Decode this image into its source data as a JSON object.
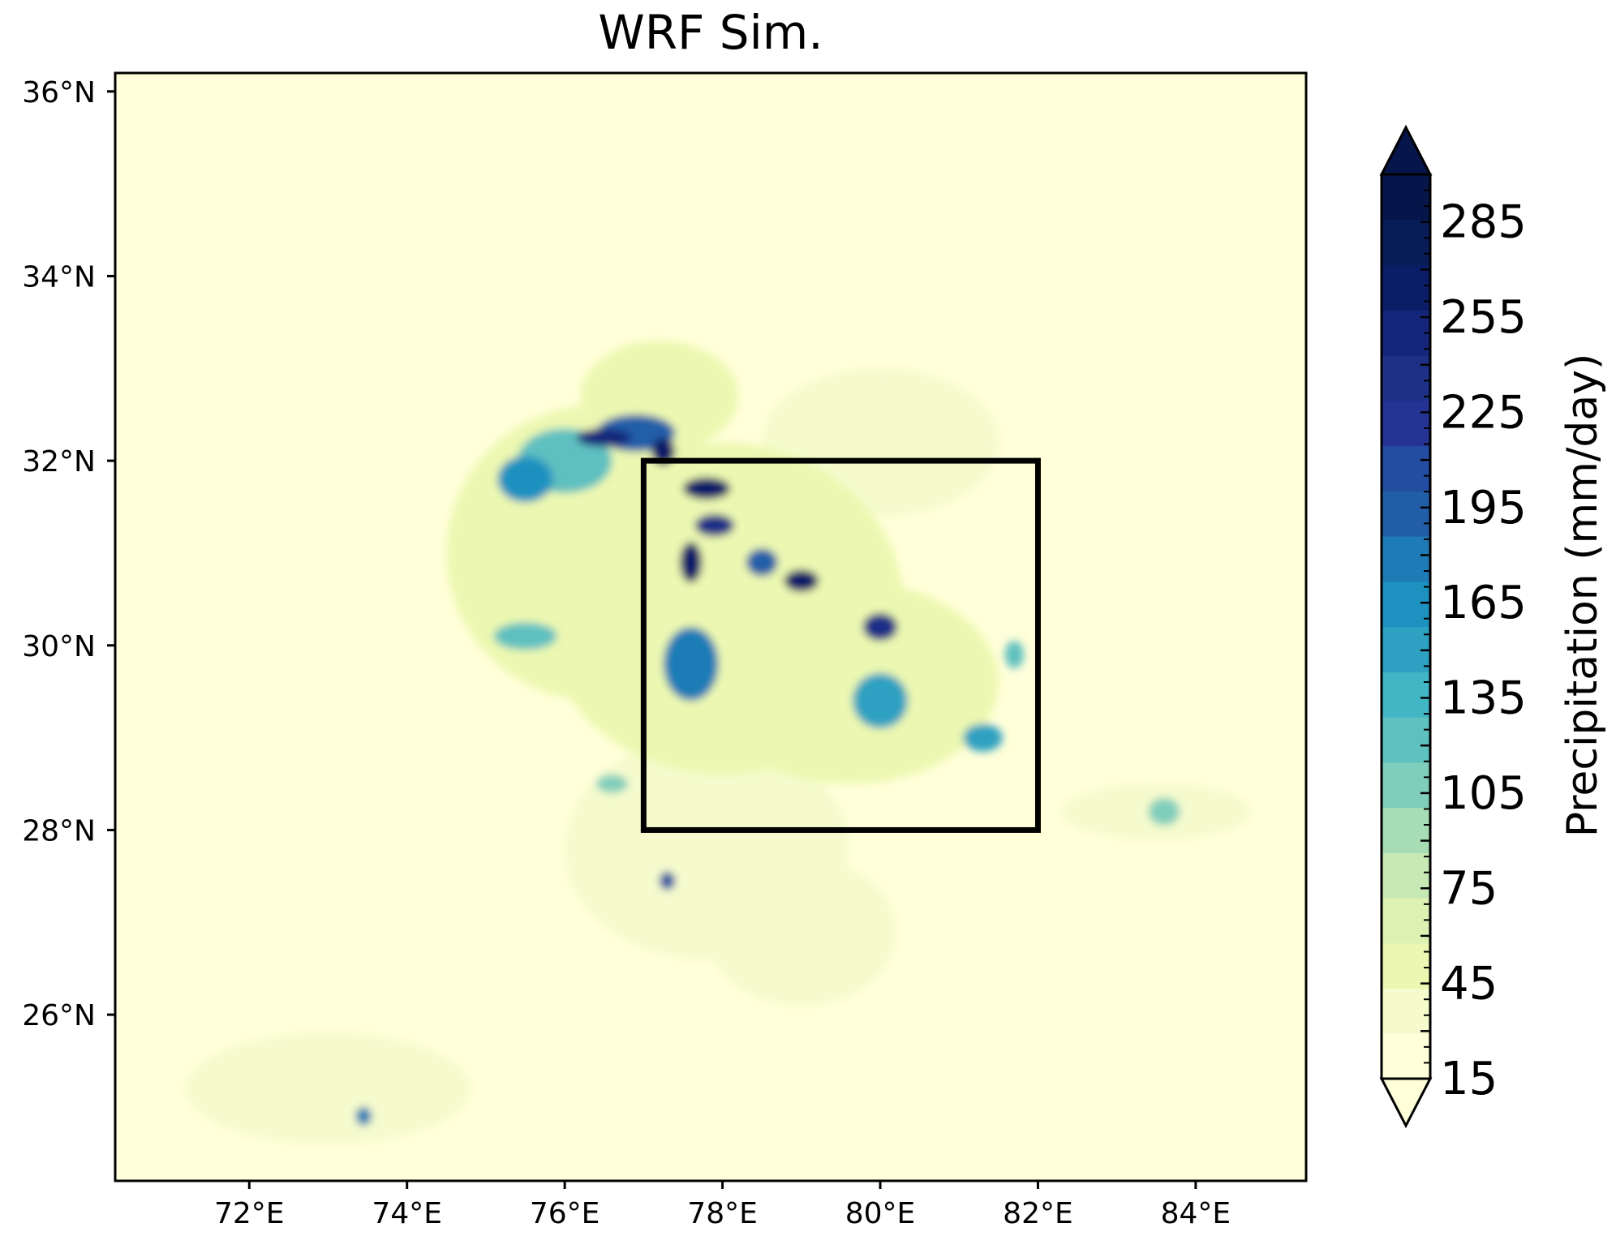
{
  "title": "WRF Sim.",
  "map": {
    "lon_range": [
      70.3,
      85.4
    ],
    "lat_range": [
      24.2,
      36.2
    ],
    "lon_ticks": [
      "72°E",
      "74°E",
      "76°E",
      "78°E",
      "80°E",
      "82°E",
      "84°E"
    ],
    "lon_tick_values": [
      72,
      74,
      76,
      78,
      80,
      82,
      84
    ],
    "lat_ticks": [
      "36°N",
      "34°N",
      "32°N",
      "30°N",
      "28°N",
      "26°N"
    ],
    "lat_tick_values": [
      36,
      34,
      32,
      30,
      28,
      26
    ],
    "box": {
      "lon_min": 77,
      "lon_max": 82,
      "lat_min": 28,
      "lat_max": 32
    }
  },
  "colorbar": {
    "label": "Precipitation (mm/day)",
    "tick_labels": [
      "15",
      "45",
      "75",
      "105",
      "135",
      "165",
      "195",
      "225",
      "255",
      "285"
    ],
    "min": 15,
    "max": 300,
    "step": 15,
    "extend": "both",
    "colors": [
      "#ffffd9",
      "#f5fbcd",
      "#ecf8b1",
      "#dcf1b2",
      "#c7e9b4",
      "#a7ddb5",
      "#7fcdbb",
      "#5fc0c0",
      "#41b6c4",
      "#2ea0c1",
      "#1d91c0",
      "#1f7bb6",
      "#225ea8",
      "#234da0",
      "#253494",
      "#1e2f86",
      "#15257a",
      "#0c1d68",
      "#081d58",
      "#06164a"
    ]
  },
  "chart_data": {
    "type": "heatmap",
    "title": "WRF Sim.",
    "variable": "Precipitation (mm/day)",
    "xlabel": "",
    "ylabel": "",
    "xlim": [
      70.3,
      85.4
    ],
    "ylim": [
      24.2,
      36.2
    ],
    "background_value": 15,
    "cells": [
      {
        "lon": 78.0,
        "lat": 30.4,
        "value": 55,
        "rx": 2.3,
        "ry": 1.8
      },
      {
        "lon": 76.4,
        "lat": 31.0,
        "value": 50,
        "rx": 1.9,
        "ry": 1.6
      },
      {
        "lon": 79.6,
        "lat": 29.6,
        "value": 55,
        "rx": 1.9,
        "ry": 1.1
      },
      {
        "lon": 77.8,
        "lat": 27.8,
        "value": 40,
        "rx": 1.8,
        "ry": 1.2
      },
      {
        "lon": 79.0,
        "lat": 26.9,
        "value": 35,
        "rx": 1.2,
        "ry": 0.8
      },
      {
        "lon": 73.0,
        "lat": 25.2,
        "value": 35,
        "rx": 1.8,
        "ry": 0.6
      },
      {
        "lon": 77.2,
        "lat": 32.7,
        "value": 50,
        "rx": 1.0,
        "ry": 0.6
      },
      {
        "lon": 80.0,
        "lat": 32.2,
        "value": 40,
        "rx": 1.5,
        "ry": 0.8
      },
      {
        "lon": 83.5,
        "lat": 28.2,
        "value": 35,
        "rx": 1.2,
        "ry": 0.3
      },
      {
        "lon": 76.0,
        "lat": 32.0,
        "value": 130,
        "rx": 0.6,
        "ry": 0.35
      },
      {
        "lon": 75.5,
        "lat": 31.8,
        "value": 170,
        "rx": 0.35,
        "ry": 0.25
      },
      {
        "lon": 76.9,
        "lat": 32.3,
        "value": 200,
        "rx": 0.5,
        "ry": 0.2
      },
      {
        "lon": 76.5,
        "lat": 32.25,
        "value": 260,
        "rx": 0.35,
        "ry": 0.1
      },
      {
        "lon": 77.25,
        "lat": 32.1,
        "value": 280,
        "rx": 0.15,
        "ry": 0.15
      },
      {
        "lon": 77.8,
        "lat": 31.7,
        "value": 270,
        "rx": 0.3,
        "ry": 0.12
      },
      {
        "lon": 77.9,
        "lat": 31.3,
        "value": 240,
        "rx": 0.25,
        "ry": 0.12
      },
      {
        "lon": 77.6,
        "lat": 30.9,
        "value": 280,
        "rx": 0.14,
        "ry": 0.22
      },
      {
        "lon": 78.5,
        "lat": 30.9,
        "value": 200,
        "rx": 0.2,
        "ry": 0.15
      },
      {
        "lon": 79.0,
        "lat": 30.7,
        "value": 280,
        "rx": 0.22,
        "ry": 0.12
      },
      {
        "lon": 80.0,
        "lat": 30.2,
        "value": 250,
        "rx": 0.22,
        "ry": 0.15
      },
      {
        "lon": 77.6,
        "lat": 29.8,
        "value": 180,
        "rx": 0.35,
        "ry": 0.4
      },
      {
        "lon": 80.0,
        "lat": 29.4,
        "value": 150,
        "rx": 0.35,
        "ry": 0.3
      },
      {
        "lon": 81.3,
        "lat": 29.0,
        "value": 150,
        "rx": 0.25,
        "ry": 0.15
      },
      {
        "lon": 75.5,
        "lat": 30.1,
        "value": 120,
        "rx": 0.4,
        "ry": 0.15
      },
      {
        "lon": 76.6,
        "lat": 28.5,
        "value": 110,
        "rx": 0.2,
        "ry": 0.1
      },
      {
        "lon": 77.3,
        "lat": 27.45,
        "value": 210,
        "rx": 0.1,
        "ry": 0.1
      },
      {
        "lon": 73.45,
        "lat": 24.9,
        "value": 180,
        "rx": 0.1,
        "ry": 0.1
      },
      {
        "lon": 81.7,
        "lat": 29.9,
        "value": 130,
        "rx": 0.12,
        "ry": 0.15
      },
      {
        "lon": 83.6,
        "lat": 28.2,
        "value": 110,
        "rx": 0.2,
        "ry": 0.15
      }
    ]
  }
}
